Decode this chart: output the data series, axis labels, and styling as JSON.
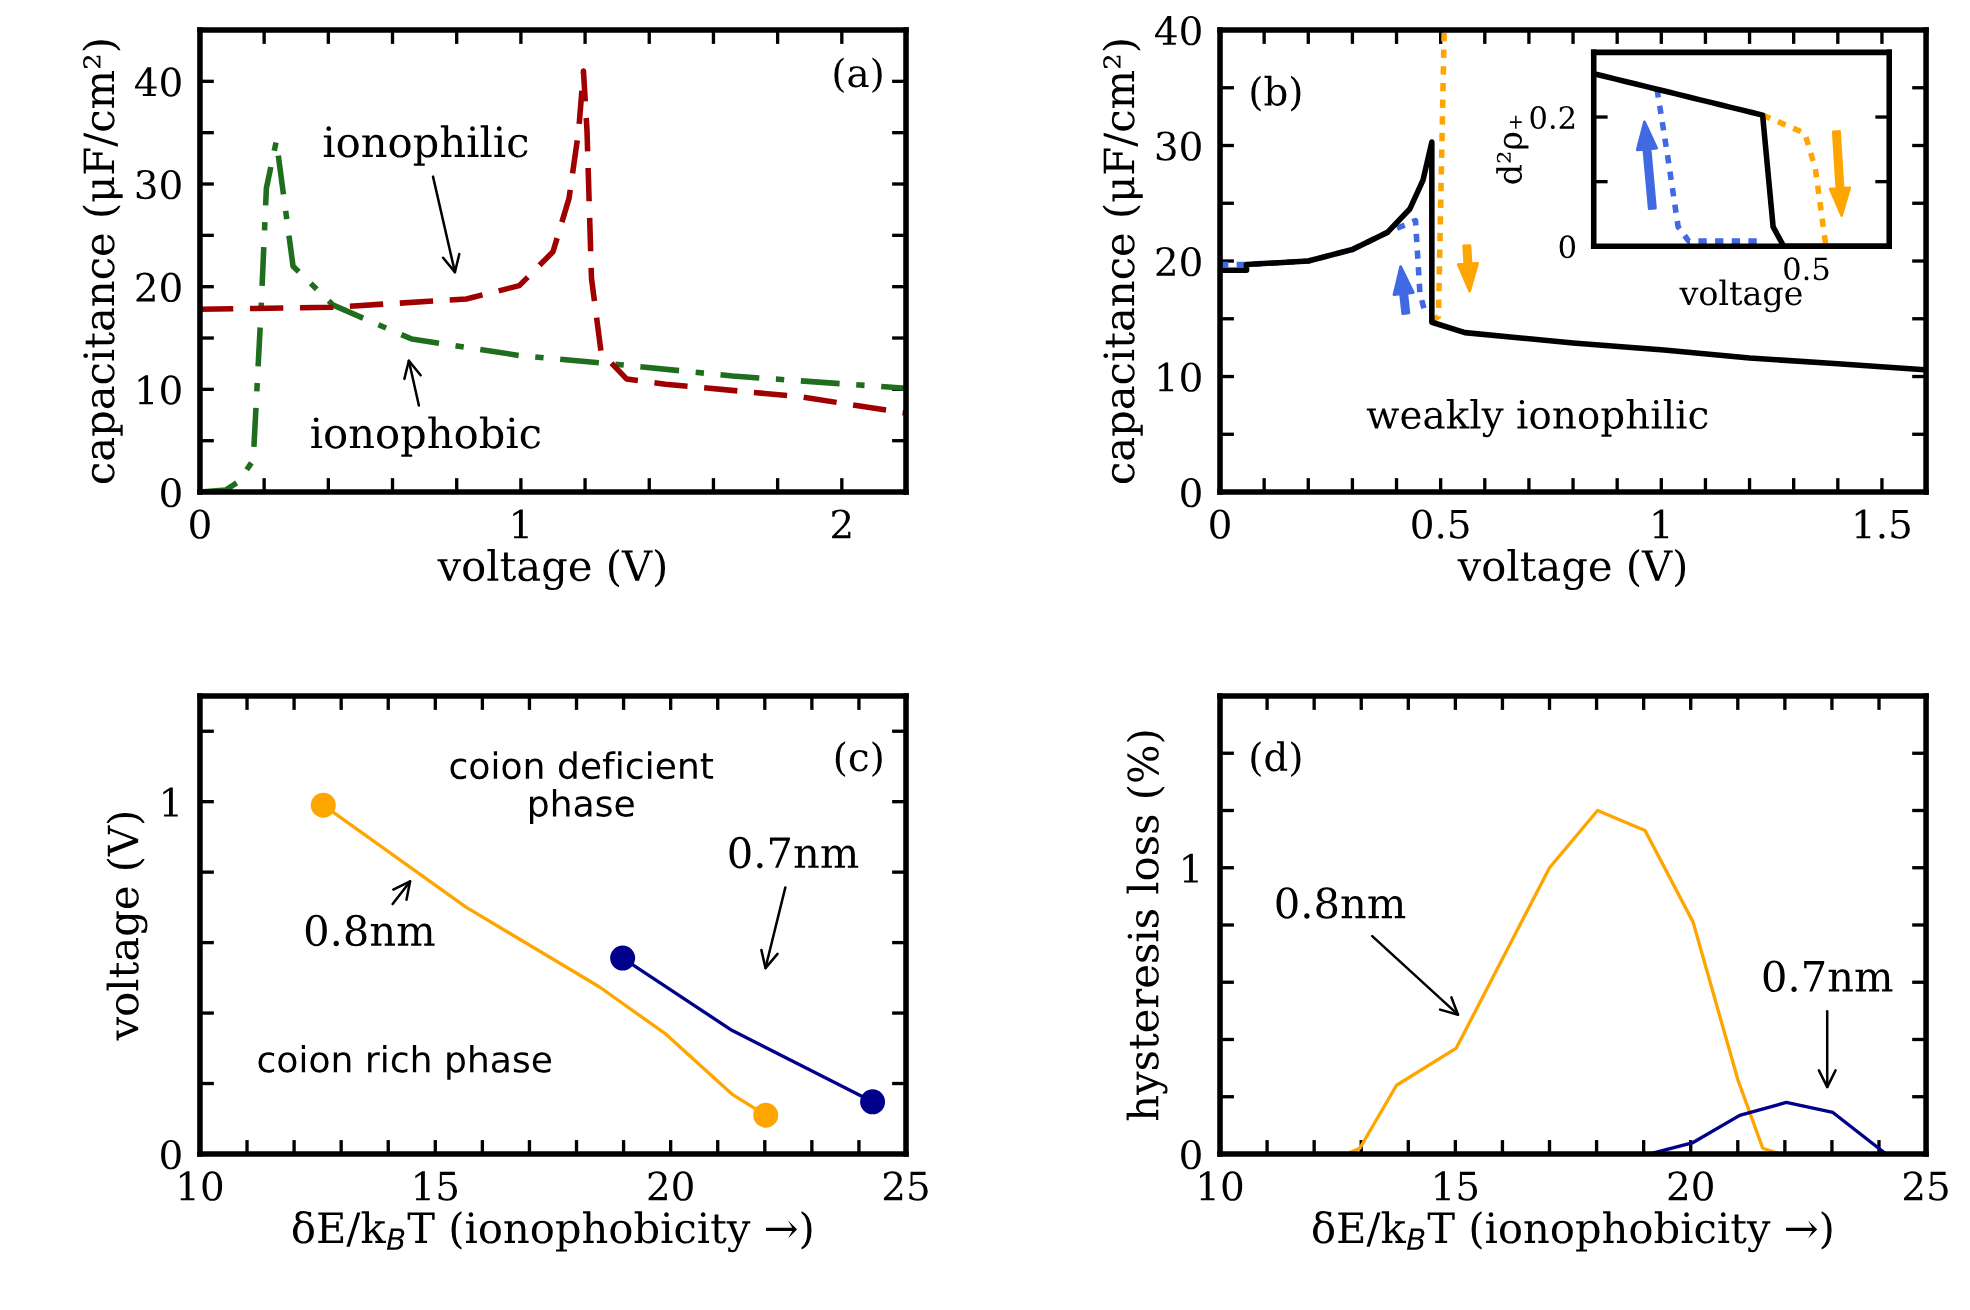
{
  "chart_data": [
    {
      "type": "line",
      "xlabel": "voltage (V)",
      "ylabel": "capacitance (μF/cm²)",
      "xlim": [
        0,
        2.2
      ],
      "ylim": [
        0,
        45
      ],
      "xticks": [
        0,
        {
          "value": 0.2,
          "label": null
        },
        {
          "value": 0.4,
          "label": null
        },
        {
          "value": 0.6,
          "label": null
        },
        {
          "value": 0.8,
          "label": null
        },
        1,
        {
          "value": 1.2,
          "label": null
        },
        {
          "value": 1.4,
          "label": null
        },
        {
          "value": 1.6,
          "label": null
        },
        {
          "value": 1.8,
          "label": null
        },
        2
      ],
      "yticks": [
        0,
        {
          "value": 5,
          "label": null
        },
        10,
        {
          "value": 15,
          "label": null
        },
        20,
        {
          "value": 25,
          "label": null
        },
        30,
        {
          "value": 35,
          "label": null
        },
        40
      ],
      "grid": false,
      "annotations": [
        "(a)",
        "ionophilic",
        "ionophobic"
      ],
      "series": [
        {
          "color": "#1e6e1e",
          "line_style": "dashdot",
          "x": [
            0,
            0.08,
            0.12,
            0.166,
            0.19,
            0.207,
            0.238,
            0.29,
            0.415,
            0.66,
            0.995,
            1.31,
            1.66,
            2.2
          ],
          "values": [
            0,
            0.2,
            1,
            3.1,
            17.5,
            29.6,
            34.2,
            22,
            18.2,
            14.9,
            13.3,
            12.4,
            11.3,
            10.1
          ]
        },
        {
          "color": "#a00000",
          "line_style": "dashed",
          "x": [
            0,
            0.415,
            0.83,
            0.995,
            1.1,
            1.15,
            1.18,
            1.195,
            1.206,
            1.22,
            1.25,
            1.33,
            1.45,
            1.865,
            2.2
          ],
          "values": [
            17.8,
            18,
            18.8,
            20.1,
            23.4,
            28.6,
            35.2,
            41,
            35.2,
            20.8,
            13.6,
            11,
            10.5,
            9.3,
            7.7
          ]
        }
      ]
    },
    {
      "type": "line",
      "xlabel": "voltage (V)",
      "ylabel": "capacitance (μF/cm²)",
      "xlim": [
        0,
        1.6
      ],
      "ylim": [
        0,
        40
      ],
      "xticks": [
        0,
        {
          "value": 0.1,
          "label": null
        },
        {
          "value": 0.2,
          "label": null
        },
        {
          "value": 0.3,
          "label": null
        },
        {
          "value": 0.4,
          "label": null
        },
        0.5,
        {
          "value": 0.6,
          "label": null
        },
        {
          "value": 0.7,
          "label": null
        },
        {
          "value": 0.8,
          "label": null
        },
        {
          "value": 0.9,
          "label": null
        },
        1,
        {
          "value": 1.1,
          "label": null
        },
        {
          "value": 1.2,
          "label": null
        },
        {
          "value": 1.3,
          "label": null
        },
        {
          "value": 1.4,
          "label": null
        },
        1.5
      ],
      "yticks": [
        0,
        {
          "value": 5,
          "label": null
        },
        10,
        {
          "value": 15,
          "label": null
        },
        20,
        {
          "value": 25,
          "label": null
        },
        30,
        {
          "value": 35,
          "label": null
        },
        40
      ],
      "grid": false,
      "annotations": [
        "(b)",
        "weakly ionophilic"
      ],
      "series": [
        {
          "color": "#4169e1",
          "line_style": "dotted",
          "x": [
            0,
            0.06,
            0.2,
            0.3,
            0.38,
            0.443,
            0.453,
            0.465
          ],
          "values": [
            19.7,
            19.7,
            20,
            21,
            22.5,
            23.5,
            17.2,
            15.5
          ]
        },
        {
          "color": "#ffa500",
          "line_style": "dotted",
          "x": [
            0.48,
            0.495,
            0.508
          ],
          "values": [
            14.8,
            15.2,
            40
          ]
        },
        {
          "color": "#000000",
          "line_style": "solid",
          "x": [
            0,
            0.06,
            0.06,
            0.2,
            0.3,
            0.38,
            0.43,
            0.46,
            0.48,
            0.48,
            0.555,
            0.8,
            1.006,
            1.2,
            1.4,
            1.59
          ],
          "values": [
            19.2,
            19.2,
            19.7,
            20,
            21,
            22.5,
            24.5,
            27,
            30.3,
            14.7,
            13.8,
            12.9,
            12.3,
            11.6,
            11.1,
            10.6
          ]
        }
      ]
    },
    {
      "type": "line",
      "xlabel": "voltage",
      "ylabel": "d²ρ₊",
      "ylim": [
        0,
        0.3
      ],
      "categories": [
        null,
        null,
        null,
        null,
        null,
        null,
        null,
        null,
        null,
        null,
        null,
        null,
        null,
        null,
        null,
        null,
        null,
        null,
        null,
        null,
        null,
        null,
        null,
        null,
        null,
        null,
        null,
        null,
        null
      ],
      "yticks": [
        0,
        {
          "value": 0.1,
          "label": null
        },
        0.2
      ],
      "grid": false,
      "annotations": [
        "0.5"
      ],
      "series": [
        {
          "color": "#4169e1",
          "line_style": "dotted",
          "values": [
            null,
            null,
            null,
            null,
            null,
            null,
            0.243,
            0.14,
            0.03,
            0.008,
            0.008,
            0.008,
            0.008,
            0.008,
            0.008,
            0.008,
            0.008,
            null,
            null,
            null,
            null,
            null,
            null,
            null,
            null,
            null,
            null,
            null,
            null
          ]
        },
        {
          "color": "#ffa500",
          "line_style": "dotted",
          "values": [
            null,
            null,
            null,
            null,
            null,
            null,
            null,
            null,
            null,
            null,
            null,
            null,
            null,
            null,
            null,
            null,
            0.203,
            0.196,
            0.189,
            0.182,
            0.175,
            0.12,
            0,
            null,
            null,
            null,
            null,
            null,
            null
          ]
        },
        {
          "color": "#000000",
          "line_style": "solid",
          "values": [
            0.267,
            0.263,
            0.259,
            0.255,
            0.251,
            0.247,
            0.243,
            0.239,
            0.235,
            0.231,
            0.227,
            0.223,
            0.219,
            0.215,
            0.211,
            0.207,
            0.203,
            0.03,
            0,
            0,
            0,
            0,
            0,
            0,
            0,
            0,
            0,
            0,
            0
          ]
        }
      ]
    },
    {
      "type": "line",
      "xlabel": "δE/k$_{B}$T (ionophobicity →)",
      "ylabel": "voltage (V)",
      "xlim": [
        10,
        25
      ],
      "ylim": [
        0,
        1.3
      ],
      "xticks": [
        10,
        {
          "value": 11,
          "label": null
        },
        {
          "value": 12,
          "label": null
        },
        {
          "value": 13,
          "label": null
        },
        {
          "value": 14,
          "label": null
        },
        15,
        {
          "value": 16,
          "label": null
        },
        {
          "value": 17,
          "label": null
        },
        {
          "value": 18,
          "label": null
        },
        {
          "value": 19,
          "label": null
        },
        20,
        {
          "value": 21,
          "label": null
        },
        {
          "value": 22,
          "label": null
        },
        {
          "value": 23,
          "label": null
        },
        {
          "value": 24,
          "label": null
        },
        25
      ],
      "yticks": [
        0,
        {
          "value": 0.2,
          "label": null
        },
        {
          "value": 0.4,
          "label": null
        },
        {
          "value": 0.6,
          "label": null
        },
        {
          "value": 0.8,
          "label": null
        },
        1,
        {
          "value": 1.2,
          "label": null
        }
      ],
      "grid": false,
      "annotations": [
        "(c)",
        "coion deficient\nphase",
        "coion rich phase",
        "0.8nm",
        "0.7nm"
      ],
      "series": [
        {
          "color": "#ffa500",
          "line_style": "solid",
          "x": [
            12.62,
            15.66,
            18.49,
            19.9,
            21.3,
            22.02
          ],
          "values": [
            0.99,
            0.7,
            0.474,
            0.34,
            0.17,
            0.11
          ]
        },
        {
          "color": "#00008b",
          "line_style": "solid",
          "x": [
            18.98,
            21.3,
            24.29
          ],
          "values": [
            0.556,
            0.351,
            0.148
          ]
        },
        {
          "type": "scatter",
          "color": "#ffa500",
          "marker": "circle",
          "x": [
            12.62,
            22.02
          ],
          "values": [
            0.99,
            0.11
          ]
        },
        {
          "type": "scatter",
          "color": "#00008b",
          "marker": "circle",
          "x": [
            18.98,
            24.29
          ],
          "values": [
            0.556,
            0.148
          ]
        }
      ]
    },
    {
      "type": "line",
      "xlabel": "δE/k$_{B}$T (ionophobicity →)",
      "ylabel": "hysteresis loss (%)",
      "xlim": [
        10,
        25
      ],
      "ylim": [
        0,
        1.6
      ],
      "xticks": [
        10,
        {
          "value": 11,
          "label": null
        },
        {
          "value": 12,
          "label": null
        },
        {
          "value": 13,
          "label": null
        },
        {
          "value": 14,
          "label": null
        },
        15,
        {
          "value": 16,
          "label": null
        },
        {
          "value": 17,
          "label": null
        },
        {
          "value": 18,
          "label": null
        },
        {
          "value": 19,
          "label": null
        },
        20,
        {
          "value": 21,
          "label": null
        },
        {
          "value": 22,
          "label": null
        },
        {
          "value": 23,
          "label": null
        },
        {
          "value": 24,
          "label": null
        },
        25
      ],
      "yticks": [
        0,
        {
          "value": 0.2,
          "label": null
        },
        {
          "value": 0.4,
          "label": null
        },
        {
          "value": 0.6,
          "label": null
        },
        {
          "value": 0.8,
          "label": null
        },
        1,
        {
          "value": 1.2,
          "label": null
        },
        {
          "value": 1.4,
          "label": null
        }
      ],
      "grid": false,
      "annotations": [
        "(d)",
        "0.8nm",
        "0.7nm"
      ],
      "series": [
        {
          "color": "#ffa500",
          "line_style": "solid",
          "x": [
            12.69,
            12.97,
            13.75,
            15.02,
            17.0,
            18.02,
            19.03,
            20.05,
            21.0,
            21.53,
            21.9
          ],
          "values": [
            0,
            0.02,
            0.24,
            0.37,
            1.0,
            1.2,
            1.13,
            0.81,
            0.26,
            0.02,
            0
          ]
        },
        {
          "color": "#00008b",
          "line_style": "solid",
          "x": [
            19.13,
            20.05,
            21.04,
            22.03,
            23.02,
            24.15
          ],
          "values": [
            0,
            0.04,
            0.135,
            0.18,
            0.145,
            0
          ]
        }
      ]
    }
  ]
}
